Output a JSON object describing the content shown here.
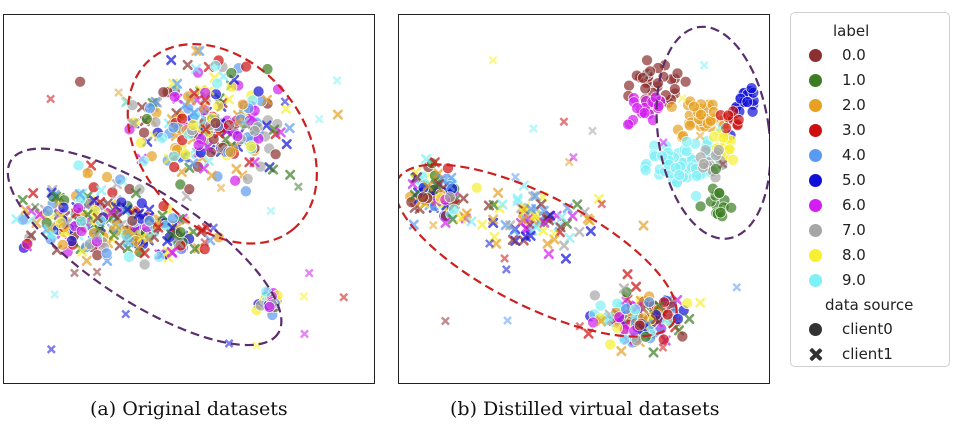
{
  "chart_data": [
    {
      "type": "scatter",
      "caption": "(a) Original datasets",
      "clusters": [
        {
          "cx": 0.56,
          "cy": 0.3,
          "rx": 0.19,
          "ry": 0.14,
          "n": 260,
          "src": "mixed"
        },
        {
          "cx": 0.22,
          "cy": 0.55,
          "rx": 0.18,
          "ry": 0.09,
          "n": 200,
          "src": "mixed"
        },
        {
          "cx": 0.4,
          "cy": 0.6,
          "rx": 0.14,
          "ry": 0.06,
          "n": 90,
          "src": "mixed"
        },
        {
          "cx": 0.72,
          "cy": 0.78,
          "rx": 0.03,
          "ry": 0.03,
          "n": 25,
          "src": "client0"
        }
      ],
      "ellipses": [
        {
          "cx": 0.59,
          "cy": 0.35,
          "rx": 0.3,
          "ry": 0.22,
          "angle": 50,
          "color": "#cc1f1f"
        },
        {
          "cx": 0.38,
          "cy": 0.63,
          "rx": 0.43,
          "ry": 0.15,
          "angle": 33,
          "color": "#5a2d6b"
        }
      ]
    },
    {
      "type": "scatter",
      "caption": "(b) Distilled virtual datasets",
      "clusters": [
        {
          "cx": 0.7,
          "cy": 0.18,
          "rx": 0.06,
          "ry": 0.06,
          "n": 30,
          "src": "client0",
          "label": 0
        },
        {
          "cx": 0.82,
          "cy": 0.28,
          "rx": 0.06,
          "ry": 0.05,
          "n": 35,
          "src": "client0",
          "label": 2
        },
        {
          "cx": 0.93,
          "cy": 0.23,
          "rx": 0.04,
          "ry": 0.05,
          "n": 20,
          "src": "client0",
          "label": 5
        },
        {
          "cx": 0.67,
          "cy": 0.25,
          "rx": 0.04,
          "ry": 0.04,
          "n": 20,
          "src": "client0",
          "label": 6
        },
        {
          "cx": 0.75,
          "cy": 0.41,
          "rx": 0.09,
          "ry": 0.06,
          "n": 60,
          "src": "client0",
          "label": 9
        },
        {
          "cx": 0.87,
          "cy": 0.35,
          "rx": 0.04,
          "ry": 0.04,
          "n": 20,
          "src": "client0",
          "label": 8
        },
        {
          "cx": 0.85,
          "cy": 0.4,
          "rx": 0.04,
          "ry": 0.03,
          "n": 15,
          "src": "client0",
          "label": 7
        },
        {
          "cx": 0.87,
          "cy": 0.49,
          "rx": 0.03,
          "ry": 0.06,
          "n": 15,
          "src": "client0",
          "label": 1
        },
        {
          "cx": 0.9,
          "cy": 0.28,
          "rx": 0.03,
          "ry": 0.03,
          "n": 10,
          "src": "client0",
          "label": 3
        },
        {
          "cx": 0.1,
          "cy": 0.49,
          "rx": 0.08,
          "ry": 0.07,
          "n": 110,
          "src": "mixed"
        },
        {
          "cx": 0.38,
          "cy": 0.55,
          "rx": 0.15,
          "ry": 0.07,
          "n": 80,
          "src": "client1"
        },
        {
          "cx": 0.65,
          "cy": 0.82,
          "rx": 0.11,
          "ry": 0.07,
          "n": 140,
          "src": "mixed"
        }
      ],
      "ellipses": [
        {
          "cx": 0.37,
          "cy": 0.64,
          "rx": 0.42,
          "ry": 0.15,
          "angle": 27,
          "color": "#cc1f1f"
        },
        {
          "cx": 0.85,
          "cy": 0.32,
          "rx": 0.15,
          "ry": 0.29,
          "angle": -8,
          "color": "#5a2d6b"
        }
      ]
    }
  ],
  "legend": {
    "label_title": "label",
    "labels": [
      {
        "name": "0.0",
        "color": "#8b2f2f"
      },
      {
        "name": "1.0",
        "color": "#3a7d22"
      },
      {
        "name": "2.0",
        "color": "#e6a125"
      },
      {
        "name": "3.0",
        "color": "#cc1010"
      },
      {
        "name": "4.0",
        "color": "#5b9bef"
      },
      {
        "name": "5.0",
        "color": "#1010d8"
      },
      {
        "name": "6.0",
        "color": "#d21ef0"
      },
      {
        "name": "7.0",
        "color": "#a6a6a6"
      },
      {
        "name": "8.0",
        "color": "#f6f030"
      },
      {
        "name": "9.0",
        "color": "#7ff0f6"
      }
    ],
    "source_title": "data source",
    "sources": [
      {
        "name": "client0",
        "marker": "circle",
        "color": "#333333"
      },
      {
        "name": "client1",
        "marker": "cross",
        "color": "#333333"
      }
    ]
  }
}
